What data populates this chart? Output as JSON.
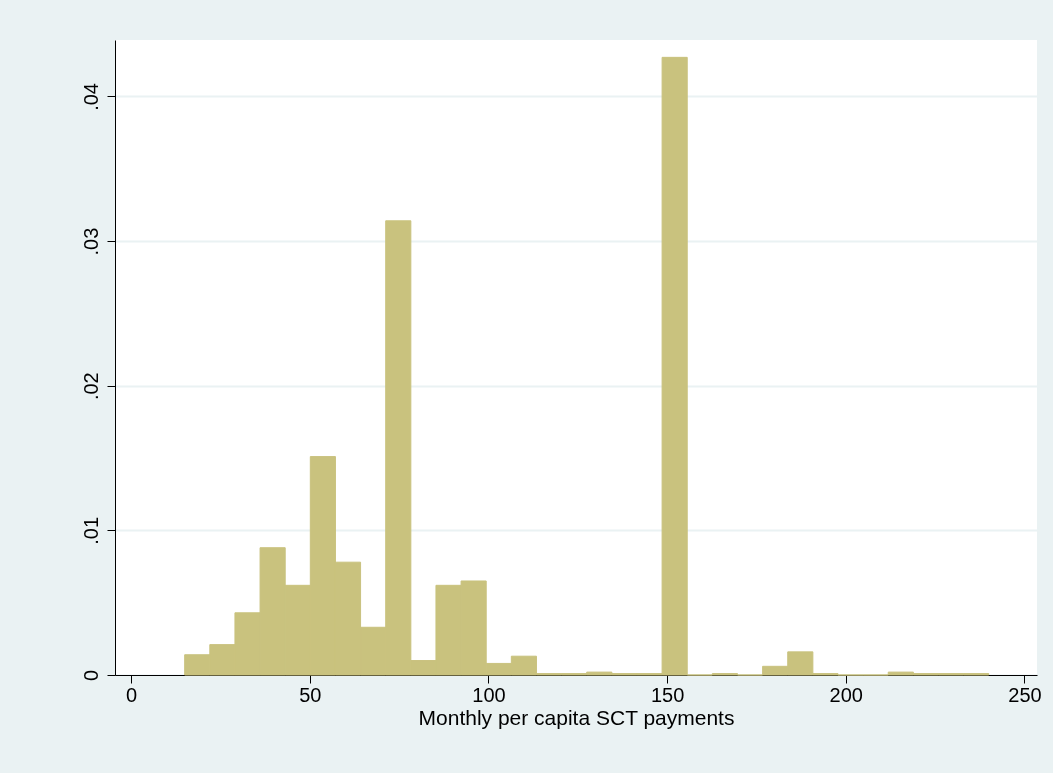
{
  "chart_data": {
    "type": "histogram",
    "xlabel": "Monthly per capita SCT payments",
    "bins": [
      15,
      22.03125,
      29.0625,
      36.09375,
      43.125,
      50.15625,
      57.1875,
      64.21875,
      71.25,
      78.28125,
      85.3125,
      92.34375,
      99.375,
      106.40625,
      113.4375,
      120.46875,
      127.5,
      134.53125,
      141.5625,
      148.59375,
      155.625,
      162.65625,
      169.6875,
      176.71875,
      183.75,
      190.78125,
      197.8125,
      204.84375,
      211.875,
      218.90625,
      225.9375,
      232.96875,
      240
    ],
    "values": [
      0.0014,
      0.0021,
      0.0043,
      0.0088,
      0.0062,
      0.0151,
      0.0078,
      0.0033,
      0.0314,
      0.001,
      0.0062,
      0.0065,
      0.0008,
      0.0013,
      0.0001,
      0.0001,
      0.0002,
      0.0001,
      0.0001,
      0.0427,
      0,
      0.0001,
      0,
      0.0006,
      0.0016,
      0.0001,
      0,
      0,
      0.0002,
      0.0001,
      0.0001,
      0.0001
    ],
    "color": "#c9c27e",
    "xlim": [
      -4.5,
      253.5
    ],
    "xticks": [
      0,
      50,
      100,
      150,
      200,
      250
    ],
    "ylim": [
      0,
      0.0439
    ],
    "yticks": [
      {
        "value": 0,
        "label": "0"
      },
      {
        "value": 0.01,
        "label": ".01"
      },
      {
        "value": 0.02,
        "label": ".02"
      },
      {
        "value": 0.03,
        "label": ".03"
      },
      {
        "value": 0.04,
        "label": ".04"
      }
    ],
    "grid": "y"
  }
}
